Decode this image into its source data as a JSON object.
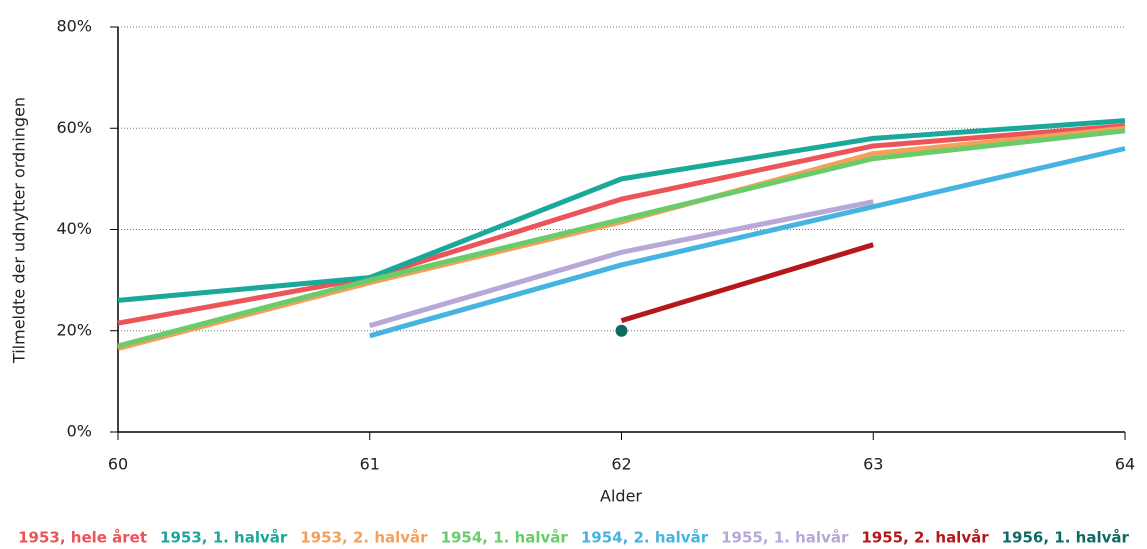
{
  "chart_data": {
    "type": "line",
    "x_label": "Alder",
    "y_label": "Tilmeldte der udnytter ordningen",
    "x": [
      60,
      61,
      62,
      63,
      64
    ],
    "xlim": [
      60,
      64
    ],
    "xticks": [
      60,
      61,
      62,
      63,
      64
    ],
    "ylim": [
      0,
      80
    ],
    "yticks": [
      {
        "value": 0,
        "label": "0%"
      },
      {
        "value": 20,
        "label": "20%"
      },
      {
        "value": 40,
        "label": "40%"
      },
      {
        "value": 60,
        "label": "60%"
      },
      {
        "value": 80,
        "label": "80%"
      }
    ],
    "grid": true,
    "legend": "bottom",
    "series": [
      {
        "name": "1953, hele året",
        "color": "#ec5558",
        "values": [
          21.5,
          30.5,
          46,
          56.5,
          60.5
        ]
      },
      {
        "name": "1953, 1. halvår",
        "color": "#1aa89a",
        "values": [
          26,
          30.5,
          50,
          58,
          61.5
        ]
      },
      {
        "name": "1953, 2. halvår",
        "color": "#f5a05a",
        "values": [
          16.5,
          29.5,
          41.5,
          55,
          60
        ]
      },
      {
        "name": "1954, 1. halvår",
        "color": "#6acb6a",
        "values": [
          17,
          30,
          42,
          54,
          59.5
        ]
      },
      {
        "name": "1954, 2. halvår",
        "color": "#45b4e0",
        "values": [
          null,
          19,
          33,
          44.5,
          56
        ]
      },
      {
        "name": "1955, 1. halvår",
        "color": "#b7a8d8",
        "values": [
          null,
          21,
          35.5,
          45.5,
          null
        ]
      },
      {
        "name": "1955, 2. halvår",
        "color": "#b5171a",
        "values": [
          null,
          null,
          22,
          37,
          null
        ]
      },
      {
        "name": "1956, 1. halvår",
        "color": "#0d6b64",
        "values": [
          null,
          null,
          20,
          null,
          null
        ]
      }
    ]
  }
}
